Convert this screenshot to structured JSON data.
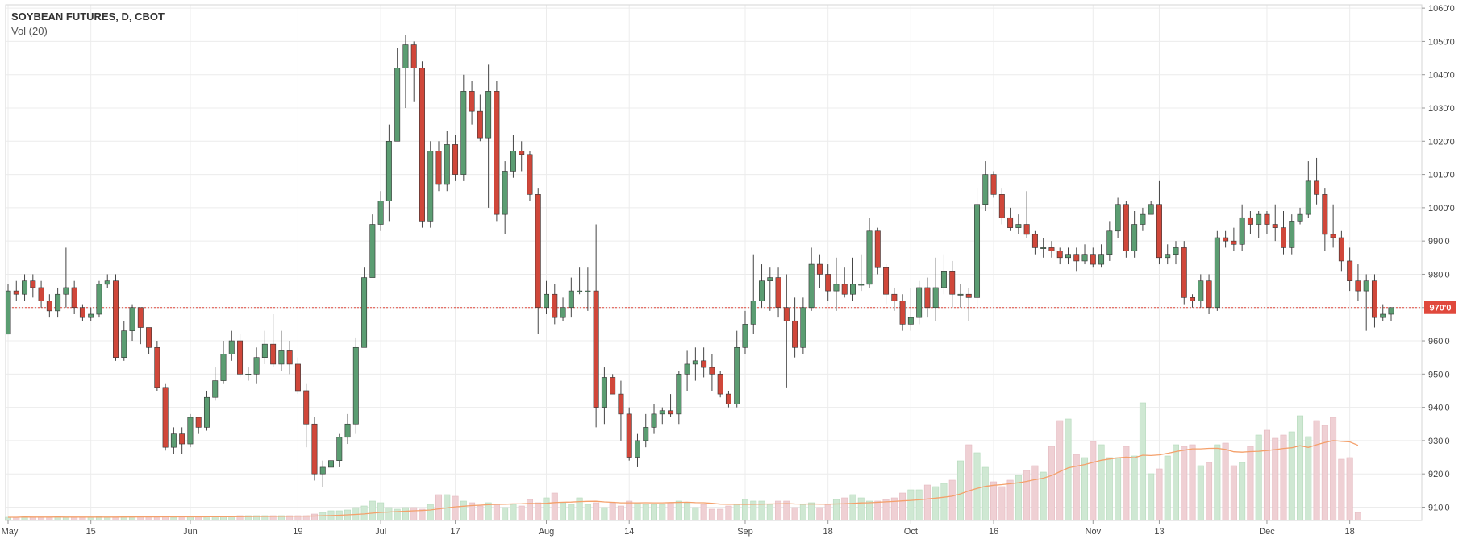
{
  "header": {
    "title": "SOYBEAN FUTURES, D, CBOT",
    "indicator": "Vol (20)"
  },
  "colors": {
    "up_body": "#5b9d72",
    "down_body": "#d0473a",
    "wick": "#444444",
    "vol_up": "#cfe8d3",
    "vol_down": "#efd0d4",
    "ma_line": "#f4a06b",
    "grid": "#ececec",
    "price_line": "#e0483c"
  },
  "chart_data": {
    "type": "candlestick",
    "title": "SOYBEAN FUTURES, D, CBOT",
    "ylabel": "",
    "y_range": [
      906,
      1061
    ],
    "y_ticks": [
      "910'0",
      "920'0",
      "930'0",
      "940'0",
      "950'0",
      "960'0",
      "970'0",
      "980'0",
      "990'0",
      "1000'0",
      "1010'0",
      "1020'0",
      "1030'0",
      "1040'0",
      "1050'0",
      "1060'0"
    ],
    "y_tick_values": [
      910,
      920,
      930,
      940,
      950,
      960,
      970,
      980,
      990,
      1000,
      1010,
      1020,
      1030,
      1040,
      1050,
      1060
    ],
    "x_ticks": [
      {
        "label": "May",
        "index": 0
      },
      {
        "label": "15",
        "index": 10
      },
      {
        "label": "Jun",
        "index": 22
      },
      {
        "label": "19",
        "index": 35
      },
      {
        "label": "Jul",
        "index": 45
      },
      {
        "label": "17",
        "index": 54
      },
      {
        "label": "Aug",
        "index": 65
      },
      {
        "label": "14",
        "index": 75
      },
      {
        "label": "Sep",
        "index": 89
      },
      {
        "label": "18",
        "index": 99
      },
      {
        "label": "Oct",
        "index": 109
      },
      {
        "label": "16",
        "index": 119
      },
      {
        "label": "Nov",
        "index": 131
      },
      {
        "label": "13",
        "index": 139
      },
      {
        "label": "Dec",
        "index": 152
      },
      {
        "label": "18",
        "index": 162
      }
    ],
    "last_price": 970,
    "last_price_label": "970'0",
    "volume_indicator": "Vol (20)",
    "candles": [
      [
        962,
        975,
        977,
        962
      ],
      [
        975,
        974,
        978,
        972
      ],
      [
        974,
        978,
        980,
        972
      ],
      [
        978,
        976,
        980,
        973
      ],
      [
        976,
        972,
        978,
        970
      ],
      [
        972,
        969,
        974,
        967
      ],
      [
        969,
        974,
        976,
        967
      ],
      [
        974,
        976,
        988,
        970
      ],
      [
        976,
        970,
        978,
        968
      ],
      [
        970,
        967,
        971,
        966
      ],
      [
        967,
        968,
        970,
        966
      ],
      [
        968,
        977,
        978,
        967
      ],
      [
        977,
        978,
        980,
        976
      ],
      [
        978,
        955,
        980,
        954
      ],
      [
        955,
        963,
        966,
        954
      ],
      [
        963,
        970,
        971,
        960
      ],
      [
        970,
        964,
        965,
        959
      ],
      [
        964,
        958,
        960,
        956
      ],
      [
        958,
        946,
        960,
        945
      ],
      [
        946,
        928,
        947,
        927
      ],
      [
        928,
        932,
        934,
        926
      ],
      [
        932,
        929,
        934,
        926
      ],
      [
        929,
        937,
        938,
        928
      ],
      [
        937,
        934,
        936,
        932
      ],
      [
        934,
        943,
        945,
        933
      ],
      [
        943,
        948,
        952,
        942
      ],
      [
        948,
        956,
        960,
        947
      ],
      [
        956,
        960,
        963,
        954
      ],
      [
        960,
        950,
        962,
        949
      ],
      [
        950,
        950,
        952,
        948
      ],
      [
        950,
        955,
        958,
        947
      ],
      [
        955,
        959,
        963,
        953
      ],
      [
        959,
        953,
        968,
        952
      ],
      [
        953,
        957,
        963,
        951
      ],
      [
        957,
        953,
        960,
        950
      ],
      [
        953,
        945,
        955,
        944
      ],
      [
        945,
        935,
        947,
        928
      ],
      [
        935,
        920,
        937,
        918
      ],
      [
        920,
        922,
        924,
        916
      ],
      [
        922,
        924,
        925,
        920
      ],
      [
        924,
        931,
        932,
        922
      ],
      [
        931,
        935,
        938,
        929
      ],
      [
        935,
        958,
        961,
        932
      ],
      [
        958,
        979,
        982,
        968
      ],
      [
        979,
        995,
        998,
        988
      ],
      [
        995,
        1002,
        1005,
        993
      ],
      [
        1002,
        1020,
        1025,
        996
      ],
      [
        1020,
        1042,
        1048,
        1035
      ],
      [
        1042,
        1049,
        1052,
        1030
      ],
      [
        1049,
        1042,
        1050,
        1032
      ],
      [
        1042,
        996,
        1044,
        994
      ],
      [
        996,
        1017,
        1020,
        994
      ],
      [
        1017,
        1007,
        1020,
        1005
      ],
      [
        1007,
        1019,
        1023,
        1005
      ],
      [
        1019,
        1010,
        1022,
        1008
      ],
      [
        1010,
        1035,
        1040,
        1008
      ],
      [
        1035,
        1029,
        1038,
        1025
      ],
      [
        1029,
        1021,
        1034,
        1020
      ],
      [
        1021,
        1035,
        1043,
        1000
      ],
      [
        1035,
        998,
        1038,
        996
      ],
      [
        998,
        1011,
        1014,
        992
      ],
      [
        1011,
        1017,
        1022,
        1009
      ],
      [
        1017,
        1016,
        1020,
        1011
      ],
      [
        1016,
        1004,
        1017,
        1002
      ],
      [
        1004,
        970,
        1006,
        962
      ],
      [
        970,
        974,
        978,
        968
      ],
      [
        974,
        967,
        977,
        965
      ],
      [
        967,
        970,
        973,
        966
      ],
      [
        970,
        975,
        979,
        967
      ],
      [
        975,
        975,
        982,
        974
      ],
      [
        975,
        975,
        982,
        969
      ],
      [
        975,
        940,
        995,
        934
      ],
      [
        940,
        949,
        952,
        935
      ],
      [
        949,
        944,
        950,
        944
      ],
      [
        944,
        938,
        948,
        930
      ],
      [
        938,
        925,
        940,
        924
      ],
      [
        925,
        930,
        932,
        922
      ],
      [
        930,
        934,
        938,
        928
      ],
      [
        934,
        938,
        941,
        932
      ],
      [
        938,
        939,
        940,
        935
      ],
      [
        939,
        938,
        944,
        937
      ],
      [
        938,
        950,
        951,
        935
      ],
      [
        950,
        953,
        957,
        945
      ],
      [
        953,
        954,
        958,
        948
      ],
      [
        954,
        952,
        958,
        949
      ],
      [
        952,
        950,
        956,
        945
      ],
      [
        950,
        944,
        951,
        943
      ],
      [
        944,
        941,
        945,
        940
      ],
      [
        941,
        958,
        963,
        940
      ],
      [
        958,
        965,
        969,
        956
      ],
      [
        965,
        972,
        986,
        962
      ],
      [
        972,
        978,
        983,
        970
      ],
      [
        978,
        979,
        982,
        969
      ],
      [
        979,
        970,
        982,
        967
      ],
      [
        970,
        966,
        980,
        946
      ],
      [
        966,
        958,
        973,
        955
      ],
      [
        958,
        970,
        973,
        956
      ],
      [
        970,
        983,
        988,
        969
      ],
      [
        983,
        980,
        986,
        976
      ],
      [
        980,
        975,
        983,
        972
      ],
      [
        975,
        977,
        985,
        969
      ],
      [
        977,
        974,
        982,
        973
      ],
      [
        974,
        977,
        985,
        972
      ],
      [
        977,
        977,
        986,
        975
      ],
      [
        977,
        993,
        997,
        976
      ],
      [
        993,
        982,
        994,
        980
      ],
      [
        982,
        974,
        983,
        971
      ],
      [
        974,
        972,
        976,
        969
      ],
      [
        972,
        965,
        974,
        963
      ],
      [
        965,
        967,
        976,
        963
      ],
      [
        967,
        976,
        978,
        965
      ],
      [
        976,
        970,
        979,
        967
      ],
      [
        970,
        976,
        985,
        966
      ],
      [
        976,
        981,
        986,
        974
      ],
      [
        981,
        974,
        984,
        970
      ],
      [
        974,
        974,
        977,
        970
      ],
      [
        974,
        973,
        976,
        966
      ],
      [
        973,
        1001,
        1006,
        970
      ],
      [
        1001,
        1010,
        1014,
        999
      ],
      [
        1010,
        1004,
        1011,
        1003
      ],
      [
        1004,
        997,
        1006,
        995
      ],
      [
        997,
        994,
        1000,
        993
      ],
      [
        994,
        995,
        998,
        992
      ],
      [
        995,
        992,
        1005,
        991
      ],
      [
        992,
        988,
        993,
        986
      ],
      [
        988,
        988,
        991,
        985
      ],
      [
        988,
        987,
        990,
        985
      ],
      [
        987,
        985,
        988,
        983
      ],
      [
        985,
        986,
        988,
        983
      ],
      [
        986,
        984,
        988,
        981
      ],
      [
        984,
        986,
        989,
        983
      ],
      [
        986,
        983,
        988,
        982
      ],
      [
        983,
        986,
        989,
        982
      ],
      [
        986,
        993,
        996,
        984
      ],
      [
        993,
        1001,
        1003,
        991
      ],
      [
        1001,
        987,
        1002,
        985
      ],
      [
        987,
        995,
        999,
        985
      ],
      [
        995,
        998,
        1000,
        993
      ],
      [
        998,
        1001,
        1002,
        998
      ],
      [
        1001,
        985,
        1008,
        983
      ],
      [
        985,
        986,
        989,
        983
      ],
      [
        986,
        988,
        990,
        983
      ],
      [
        988,
        973,
        990,
        971
      ],
      [
        973,
        972,
        974,
        970
      ],
      [
        972,
        978,
        980,
        970
      ],
      [
        978,
        970,
        980,
        968
      ],
      [
        970,
        991,
        993,
        969
      ],
      [
        991,
        990,
        993,
        988
      ],
      [
        990,
        989,
        994,
        987
      ],
      [
        989,
        997,
        1001,
        987
      ],
      [
        997,
        995,
        999,
        992
      ],
      [
        995,
        998,
        999,
        991
      ],
      [
        998,
        995,
        999,
        992
      ],
      [
        995,
        994,
        1001,
        990
      ],
      [
        994,
        988,
        999,
        986
      ],
      [
        988,
        996,
        998,
        986
      ],
      [
        996,
        998,
        1000,
        995
      ],
      [
        998,
        1008,
        1014,
        997
      ],
      [
        1008,
        1004,
        1015,
        1001
      ],
      [
        1004,
        992,
        1006,
        987
      ],
      [
        992,
        991,
        1001,
        988
      ],
      [
        991,
        984,
        993,
        981
      ],
      [
        984,
        978,
        988,
        975
      ],
      [
        978,
        975,
        983,
        972
      ],
      [
        975,
        978,
        980,
        963
      ],
      [
        978,
        967,
        980,
        964
      ],
      [
        967,
        968,
        971,
        966
      ],
      [
        968,
        970,
        970,
        966
      ]
    ],
    "volume": [
      4,
      4,
      5,
      4,
      4,
      4,
      5,
      4,
      4,
      4,
      4,
      5,
      4,
      4,
      5,
      5,
      5,
      5,
      5,
      5,
      4,
      5,
      5,
      5,
      5,
      5,
      5,
      5,
      6,
      6,
      6,
      6,
      6,
      6,
      6,
      6,
      6,
      8,
      10,
      12,
      12,
      13,
      16,
      18,
      24,
      22,
      16,
      14,
      16,
      16,
      14,
      20,
      32,
      32,
      30,
      24,
      22,
      18,
      22,
      20,
      16,
      20,
      18,
      26,
      22,
      28,
      34,
      22,
      20,
      28,
      20,
      22,
      16,
      22,
      18,
      24,
      22,
      20,
      20,
      20,
      22,
      24,
      22,
      16,
      20,
      14,
      14,
      18,
      20,
      26,
      24,
      24,
      20,
      24,
      24,
      16,
      20,
      22,
      16,
      20,
      26,
      28,
      32,
      28,
      24,
      24,
      26,
      28,
      34,
      38,
      38,
      44,
      42,
      46,
      50,
      74,
      94,
      84,
      66,
      48,
      42,
      50,
      56,
      62,
      68,
      60,
      92,
      124,
      126,
      82,
      78,
      98,
      94,
      78,
      78,
      92,
      80,
      146,
      58,
      64,
      80,
      94,
      92,
      94,
      68,
      72,
      94,
      96,
      68,
      72,
      92,
      106,
      112,
      102,
      106,
      110,
      130,
      104,
      124,
      118,
      128,
      76,
      78,
      10
    ]
  }
}
